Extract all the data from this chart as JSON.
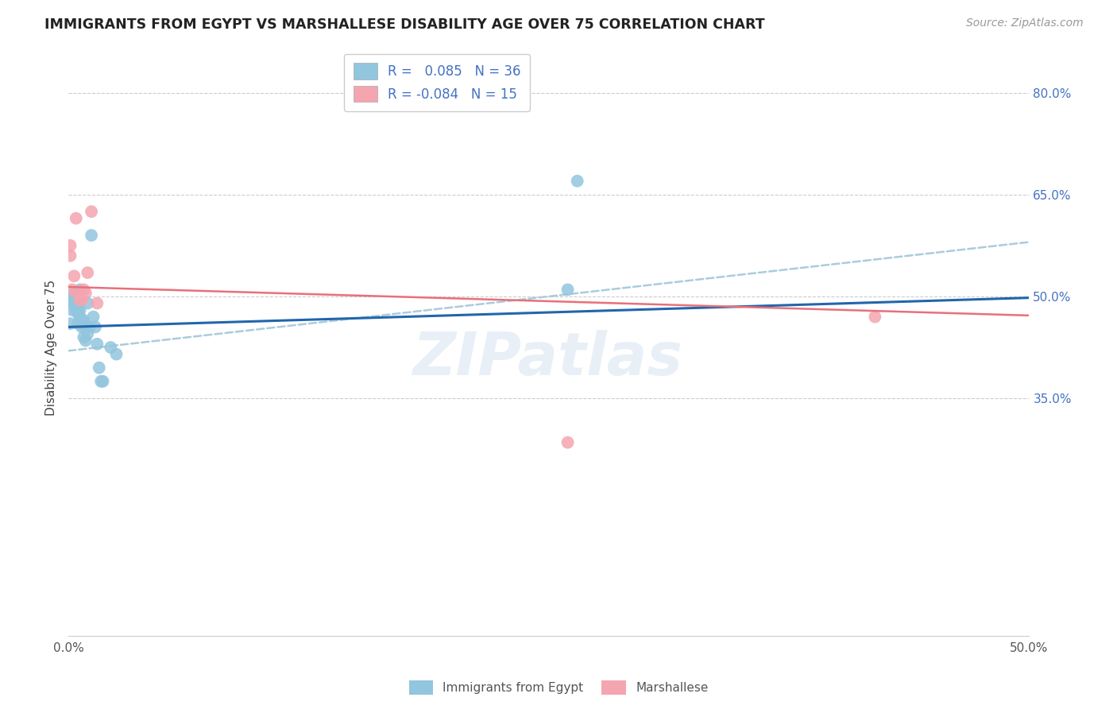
{
  "title": "IMMIGRANTS FROM EGYPT VS MARSHALLESE DISABILITY AGE OVER 75 CORRELATION CHART",
  "source": "Source: ZipAtlas.com",
  "ylabel": "Disability Age Over 75",
  "xlim": [
    0.0,
    0.5
  ],
  "ylim": [
    0.0,
    0.85
  ],
  "yticks_right": [
    0.35,
    0.5,
    0.65,
    0.8
  ],
  "ytick_right_labels": [
    "35.0%",
    "50.0%",
    "65.0%",
    "80.0%"
  ],
  "color_blue": "#92C5DE",
  "color_pink": "#F4A5B0",
  "trendline_blue": "#2166AC",
  "trendline_pink": "#E8707A",
  "trendline_dashed_color": "#AACCDD",
  "background": "#FFFFFF",
  "watermark": "ZIPatlas",
  "egypt_x": [
    0.001,
    0.002,
    0.002,
    0.003,
    0.003,
    0.003,
    0.004,
    0.004,
    0.004,
    0.005,
    0.005,
    0.005,
    0.005,
    0.006,
    0.006,
    0.006,
    0.007,
    0.007,
    0.008,
    0.008,
    0.009,
    0.009,
    0.01,
    0.01,
    0.011,
    0.012,
    0.013,
    0.014,
    0.015,
    0.016,
    0.017,
    0.018,
    0.022,
    0.025,
    0.26,
    0.265
  ],
  "egypt_y": [
    0.46,
    0.49,
    0.48,
    0.5,
    0.495,
    0.505,
    0.485,
    0.48,
    0.495,
    0.475,
    0.46,
    0.48,
    0.5,
    0.47,
    0.48,
    0.51,
    0.455,
    0.465,
    0.44,
    0.465,
    0.435,
    0.455,
    0.49,
    0.445,
    0.455,
    0.59,
    0.47,
    0.455,
    0.43,
    0.395,
    0.375,
    0.375,
    0.425,
    0.415,
    0.51,
    0.67
  ],
  "marshallese_x": [
    0.001,
    0.001,
    0.002,
    0.003,
    0.004,
    0.005,
    0.006,
    0.007,
    0.008,
    0.009,
    0.01,
    0.012,
    0.015,
    0.26,
    0.42
  ],
  "marshallese_y": [
    0.56,
    0.575,
    0.51,
    0.53,
    0.615,
    0.505,
    0.495,
    0.495,
    0.51,
    0.505,
    0.535,
    0.625,
    0.49,
    0.285,
    0.47
  ],
  "blue_trend_xstart": 0.0,
  "blue_trend_xend": 0.5,
  "blue_trend_ystart": 0.455,
  "blue_trend_yend": 0.498,
  "pink_trend_xstart": 0.0,
  "pink_trend_xend": 0.5,
  "pink_trend_ystart": 0.514,
  "pink_trend_yend": 0.472,
  "dashed_xstart": 0.0,
  "dashed_xend": 0.5,
  "dashed_ystart": 0.42,
  "dashed_yend": 0.58
}
